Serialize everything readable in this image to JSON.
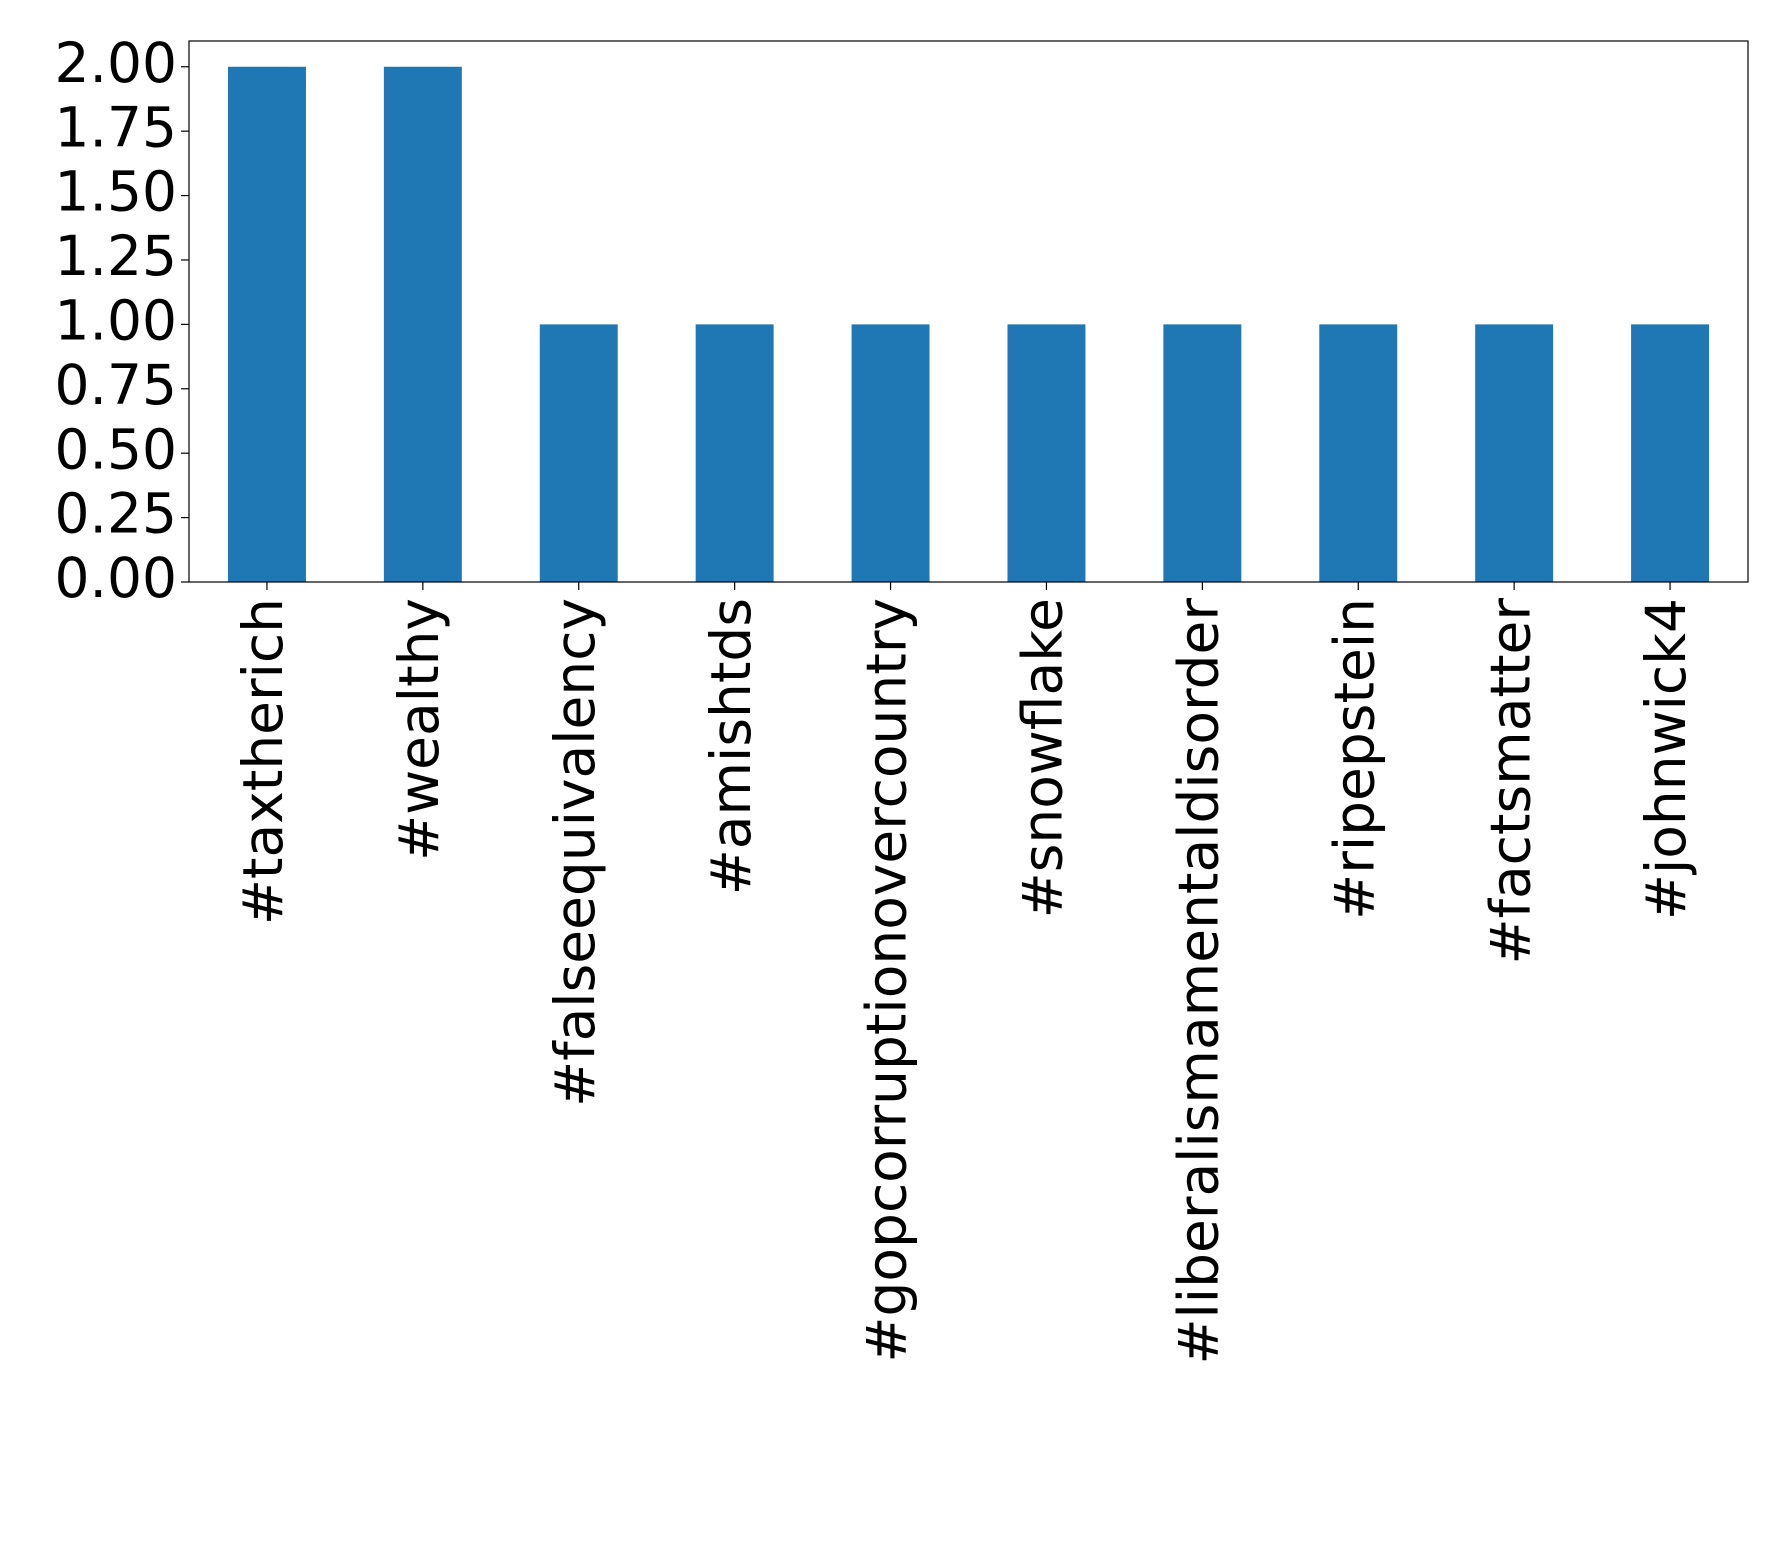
{
  "chart_data": {
    "type": "bar",
    "categories": [
      "#taxtherich",
      "#wealthy",
      "#falseequivalency",
      "#amishtds",
      "#gopcorruptionovercountry",
      "#snowflake",
      "#liberalismamentaldisorder",
      "#ripepstein",
      "#factsmatter",
      "#johnwick4"
    ],
    "values": [
      2,
      2,
      1,
      1,
      1,
      1,
      1,
      1,
      1,
      1
    ],
    "color": "#1f77b4",
    "ylim": [
      0,
      2.1
    ],
    "yticks": [
      {
        "value": 0,
        "label": "0.00"
      },
      {
        "value": 0.25,
        "label": "0.25"
      },
      {
        "value": 0.5,
        "label": "0.50"
      },
      {
        "value": 0.75,
        "label": "0.75"
      },
      {
        "value": 1,
        "label": "1.00"
      },
      {
        "value": 1.25,
        "label": "1.25"
      },
      {
        "value": 1.5,
        "label": "1.50"
      },
      {
        "value": 1.75,
        "label": "1.75"
      },
      {
        "value": 2,
        "label": "2.00"
      }
    ],
    "grid": false
  }
}
